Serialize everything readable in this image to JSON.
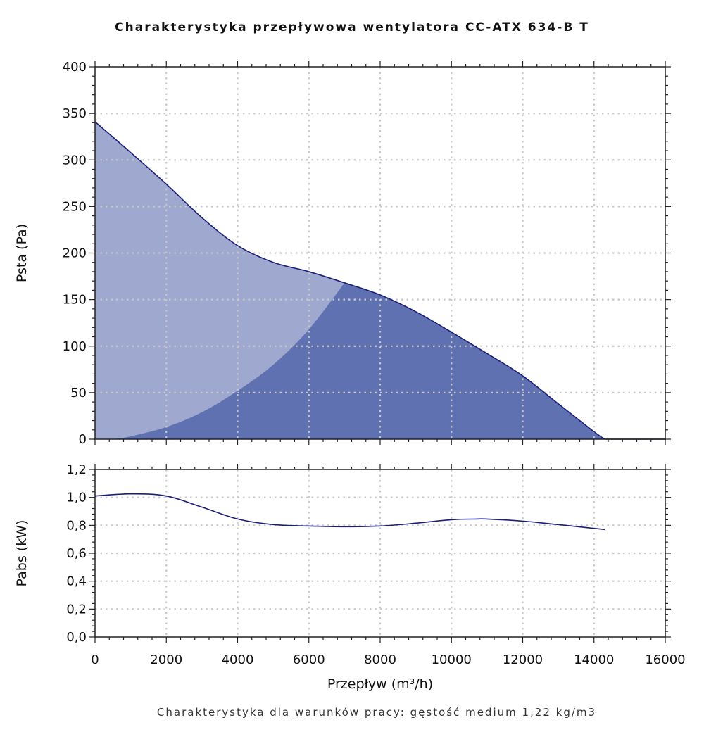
{
  "chart_data": [
    {
      "type": "area",
      "title": "Charakterystyka przepływowa wentylatora CC-ATX 634-B T",
      "xlabel": "",
      "ylabel": "Psta (Pa)",
      "xlim": [
        0,
        16000
      ],
      "ylim": [
        0,
        400
      ],
      "x_ticks": [
        "0",
        "2000",
        "4000",
        "6000",
        "8000",
        "10000",
        "12000",
        "14000",
        "16000"
      ],
      "y_ticks": [
        "0",
        "50",
        "100",
        "150",
        "200",
        "250",
        "300",
        "350",
        "400"
      ],
      "grid": true,
      "colors": {
        "light_fill": "#9fa8cf",
        "dark_fill": "#5f71b0",
        "line": "#1b1f7a",
        "grid": "#c8c8c8"
      },
      "series": [
        {
          "x": [
            0,
            1000,
            2000,
            3000,
            4000,
            5000,
            6000,
            7000,
            8000,
            9000,
            10000,
            11000,
            12000,
            13000,
            14000,
            14300,
            16000
          ],
          "values": [
            341,
            308,
            274,
            238,
            208,
            190,
            180,
            168,
            155,
            137,
            115,
            92,
            68,
            38,
            8,
            0,
            0
          ]
        },
        {
          "x": [
            500,
            1000,
            2000,
            3000,
            4000,
            5000,
            6000,
            7000
          ],
          "values": [
            0,
            3,
            13,
            29,
            52,
            80,
            118,
            168
          ]
        }
      ]
    },
    {
      "type": "line",
      "title": "",
      "xlabel": "Przepływ (m³/h)",
      "ylabel": "Pabs (kW)",
      "xlim": [
        0,
        16000
      ],
      "ylim": [
        0,
        1.2
      ],
      "x_ticks": [
        "0",
        "2000",
        "4000",
        "6000",
        "8000",
        "10000",
        "12000",
        "14000",
        "16000"
      ],
      "y_ticks": [
        "0,0",
        "0,2",
        "0,4",
        "0,6",
        "0,8",
        "1,0",
        "1,2"
      ],
      "grid": true,
      "series": [
        {
          "x": [
            0,
            1000,
            2000,
            3000,
            4000,
            5000,
            6000,
            7000,
            8000,
            9000,
            10000,
            10700,
            11000,
            12000,
            13000,
            14300
          ],
          "values": [
            1.01,
            1.025,
            1.01,
            0.93,
            0.845,
            0.805,
            0.795,
            0.79,
            0.795,
            0.815,
            0.84,
            0.845,
            0.845,
            0.83,
            0.805,
            0.77
          ]
        }
      ]
    }
  ],
  "footer": "Charakterystyka dla warunków pracy: gęstość medium 1,22 kg/m3"
}
